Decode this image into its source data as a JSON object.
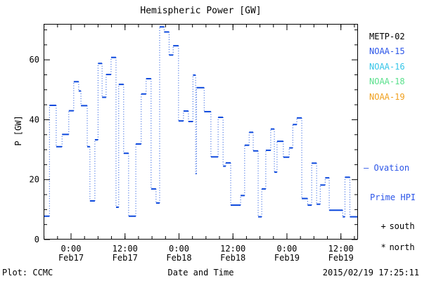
{
  "title": "Hemispheric Power [GW]",
  "footer": {
    "left": "Plot: CCMC",
    "center": "Date and Time",
    "right": "2015/02/19 17:25:11"
  },
  "legend": {
    "satellites": [
      {
        "label": "METP-02",
        "color": "#000000"
      },
      {
        "label": "NOAA-15",
        "color": "#2b55e8"
      },
      {
        "label": "NOAA-16",
        "color": "#35c5e8"
      },
      {
        "label": "NOAA-18",
        "color": "#5ae08c"
      },
      {
        "label": "NOAA-19",
        "color": "#f0a01e"
      }
    ],
    "ovation": {
      "dash": "—",
      "line1": "Ovation",
      "line2": "Prime HPI",
      "color": "#2b55e8"
    },
    "markers": [
      {
        "symbol": "+",
        "label": "south"
      },
      {
        "symbol": "*",
        "label": "north"
      }
    ]
  },
  "chart_data": {
    "type": "line",
    "subtype": "steps",
    "title": "Hemispheric Power [GW]",
    "xlabel": "Date and Time",
    "ylabel": "P [GW]",
    "x_unit_hours_span": 69.9,
    "x_window": "2015 Feb 16 ~18:00 UT to Feb 19 ~16:00 UT",
    "ylim": [
      0,
      72
    ],
    "y_major_ticks": [
      0,
      20,
      40,
      60
    ],
    "y_minor_step": 5,
    "x_minor_step_hours": 3,
    "x_major_ticks": [
      {
        "hour": 6.1,
        "time": "0:00",
        "date": "Feb17"
      },
      {
        "hour": 18.1,
        "time": "12:00",
        "date": "Feb17"
      },
      {
        "hour": 30.1,
        "time": "0:00",
        "date": "Feb18"
      },
      {
        "hour": 42.1,
        "time": "12:00",
        "date": "Feb18"
      },
      {
        "hour": 54.1,
        "time": "0:00",
        "date": "Feb19"
      },
      {
        "hour": 66.1,
        "time": "12:00",
        "date": "Feb19"
      }
    ],
    "grid": false,
    "line_color": "#0d49dd",
    "series": [
      {
        "name": "Hemispheric Power - Ovation Prime HPI",
        "color": "#0d49dd",
        "steps_hour_value": [
          [
            0.0,
            7.8
          ],
          [
            1.3,
            44.8
          ],
          [
            2.8,
            31.0
          ],
          [
            4.1,
            35.1
          ],
          [
            5.6,
            43.0
          ],
          [
            6.7,
            52.7
          ],
          [
            7.8,
            49.6
          ],
          [
            8.3,
            44.7
          ],
          [
            9.7,
            31.0
          ],
          [
            10.3,
            12.9
          ],
          [
            11.4,
            33.3
          ],
          [
            12.1,
            58.8
          ],
          [
            13.0,
            47.5
          ],
          [
            13.9,
            55.1
          ],
          [
            15.0,
            60.8
          ],
          [
            16.1,
            10.8
          ],
          [
            16.7,
            51.8
          ],
          [
            17.8,
            28.8
          ],
          [
            18.9,
            7.8
          ],
          [
            20.5,
            31.9
          ],
          [
            21.7,
            48.6
          ],
          [
            22.8,
            53.7
          ],
          [
            23.9,
            16.9
          ],
          [
            25.0,
            12.2
          ],
          [
            25.8,
            71.0
          ],
          [
            26.8,
            69.3
          ],
          [
            27.9,
            61.6
          ],
          [
            28.8,
            64.7
          ],
          [
            30.0,
            39.6
          ],
          [
            31.1,
            42.9
          ],
          [
            32.2,
            39.4
          ],
          [
            33.2,
            54.9
          ],
          [
            33.8,
            22.0
          ],
          [
            34.0,
            50.7
          ],
          [
            35.7,
            42.7
          ],
          [
            37.2,
            27.6
          ],
          [
            38.8,
            40.8
          ],
          [
            39.9,
            24.5
          ],
          [
            40.5,
            25.6
          ],
          [
            41.6,
            11.5
          ],
          [
            43.8,
            14.7
          ],
          [
            44.7,
            31.5
          ],
          [
            45.7,
            35.8
          ],
          [
            46.6,
            29.6
          ],
          [
            47.7,
            7.6
          ],
          [
            48.5,
            16.9
          ],
          [
            49.4,
            29.8
          ],
          [
            50.5,
            36.9
          ],
          [
            51.3,
            22.5
          ],
          [
            51.9,
            32.8
          ],
          [
            53.3,
            27.5
          ],
          [
            54.6,
            30.6
          ],
          [
            55.4,
            38.4
          ],
          [
            56.3,
            40.6
          ],
          [
            57.4,
            13.7
          ],
          [
            58.7,
            11.5
          ],
          [
            59.6,
            25.5
          ],
          [
            60.7,
            11.8
          ],
          [
            61.5,
            18.2
          ],
          [
            62.6,
            20.6
          ],
          [
            63.5,
            9.8
          ],
          [
            66.5,
            7.6
          ],
          [
            67.0,
            20.8
          ],
          [
            68.1,
            7.6
          ]
        ]
      }
    ]
  }
}
